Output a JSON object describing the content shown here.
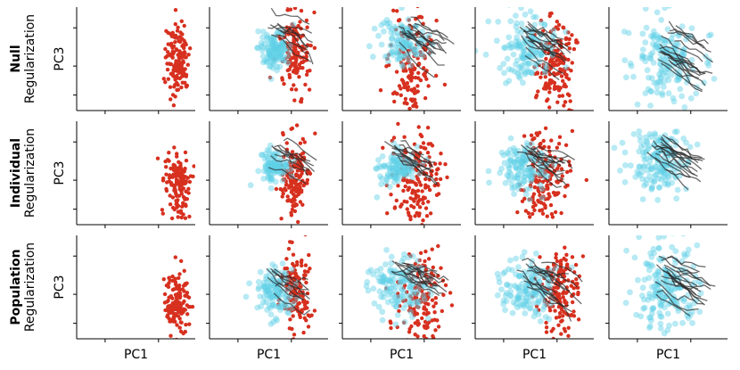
{
  "chart_data": {
    "type": "scatter",
    "grid": false,
    "rows": [
      {
        "name": "Null",
        "subtitle": "Regularization",
        "ylabel": "PC3"
      },
      {
        "name": "Individual",
        "subtitle": "Regularization",
        "ylabel": "PC3"
      },
      {
        "name": "Population",
        "subtitle": "Regularization",
        "ylabel": "PC3"
      }
    ],
    "xlabels": [
      "PC1",
      "PC1",
      "PC1",
      "PC1",
      "PC1"
    ],
    "colors": {
      "red_points": "#d7301f",
      "cyan_points": "#5fd0e6",
      "trajectories": "#2b2b2b"
    },
    "panels": [
      [
        {
          "red": {
            "cx": 0.85,
            "cy": 0.5,
            "sx": 0.05,
            "sy": 0.18,
            "n": 140
          },
          "cyan": null,
          "traj": 0
        },
        {
          "red": {
            "cx": 0.72,
            "cy": 0.45,
            "sx": 0.06,
            "sy": 0.2,
            "n": 150
          },
          "cyan": {
            "cx": 0.55,
            "cy": 0.4,
            "sx": 0.07,
            "sy": 0.09,
            "n": 120
          },
          "traj": 8
        },
        {
          "red": {
            "cx": 0.58,
            "cy": 0.55,
            "sx": 0.09,
            "sy": 0.25,
            "n": 160
          },
          "cyan": {
            "cx": 0.52,
            "cy": 0.35,
            "sx": 0.1,
            "sy": 0.12,
            "n": 120
          },
          "traj": 12
        },
        {
          "red": {
            "cx": 0.68,
            "cy": 0.55,
            "sx": 0.08,
            "sy": 0.22,
            "n": 160
          },
          "cyan": {
            "cx": 0.45,
            "cy": 0.4,
            "sx": 0.12,
            "sy": 0.15,
            "n": 150
          },
          "traj": 14
        },
        {
          "red": null,
          "cyan": {
            "cx": 0.48,
            "cy": 0.5,
            "sx": 0.14,
            "sy": 0.2,
            "n": 180
          },
          "traj": 18
        }
      ],
      [
        {
          "red": {
            "cx": 0.85,
            "cy": 0.6,
            "sx": 0.05,
            "sy": 0.16,
            "n": 140
          },
          "cyan": null,
          "traj": 0
        },
        {
          "red": {
            "cx": 0.72,
            "cy": 0.55,
            "sx": 0.06,
            "sy": 0.2,
            "n": 150
          },
          "cyan": {
            "cx": 0.55,
            "cy": 0.45,
            "sx": 0.06,
            "sy": 0.08,
            "n": 100
          },
          "traj": 8
        },
        {
          "red": {
            "cx": 0.62,
            "cy": 0.55,
            "sx": 0.1,
            "sy": 0.22,
            "n": 160
          },
          "cyan": {
            "cx": 0.45,
            "cy": 0.45,
            "sx": 0.08,
            "sy": 0.08,
            "n": 110
          },
          "traj": 10
        },
        {
          "red": {
            "cx": 0.58,
            "cy": 0.55,
            "sx": 0.1,
            "sy": 0.22,
            "n": 160
          },
          "cyan": {
            "cx": 0.42,
            "cy": 0.45,
            "sx": 0.1,
            "sy": 0.12,
            "n": 130
          },
          "traj": 12
        },
        {
          "red": null,
          "cyan": {
            "cx": 0.42,
            "cy": 0.4,
            "sx": 0.12,
            "sy": 0.15,
            "n": 170
          },
          "traj": 16
        }
      ],
      [
        {
          "red": {
            "cx": 0.85,
            "cy": 0.65,
            "sx": 0.05,
            "sy": 0.16,
            "n": 140
          },
          "cyan": null,
          "traj": 0
        },
        {
          "red": {
            "cx": 0.72,
            "cy": 0.55,
            "sx": 0.06,
            "sy": 0.2,
            "n": 150
          },
          "cyan": {
            "cx": 0.55,
            "cy": 0.55,
            "sx": 0.08,
            "sy": 0.12,
            "n": 120
          },
          "traj": 8
        },
        {
          "red": {
            "cx": 0.65,
            "cy": 0.6,
            "sx": 0.1,
            "sy": 0.22,
            "n": 160
          },
          "cyan": {
            "cx": 0.48,
            "cy": 0.5,
            "sx": 0.12,
            "sy": 0.14,
            "n": 140
          },
          "traj": 12
        },
        {
          "red": {
            "cx": 0.72,
            "cy": 0.55,
            "sx": 0.08,
            "sy": 0.2,
            "n": 160
          },
          "cyan": {
            "cx": 0.45,
            "cy": 0.5,
            "sx": 0.12,
            "sy": 0.14,
            "n": 150
          },
          "traj": 14
        },
        {
          "red": null,
          "cyan": {
            "cx": 0.48,
            "cy": 0.5,
            "sx": 0.14,
            "sy": 0.2,
            "n": 180
          },
          "traj": 18
        }
      ]
    ]
  }
}
